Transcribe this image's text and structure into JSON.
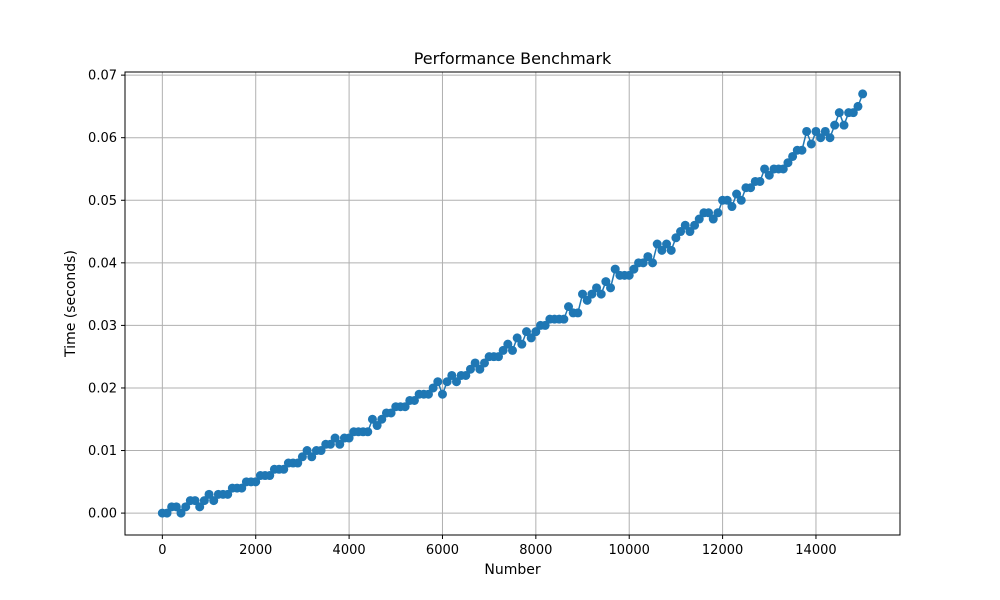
{
  "chart_data": {
    "type": "line",
    "title": "Performance Benchmark",
    "xlabel": "Number",
    "ylabel": "Time (seconds)",
    "xlim": [
      -800,
      15800
    ],
    "ylim": [
      -0.0035,
      0.0705
    ],
    "xticks": [
      0,
      2000,
      4000,
      6000,
      8000,
      10000,
      12000,
      14000
    ],
    "xtick_labels": [
      "0",
      "2000",
      "4000",
      "6000",
      "8000",
      "10000",
      "12000",
      "14000"
    ],
    "yticks": [
      0.0,
      0.01,
      0.02,
      0.03,
      0.04,
      0.05,
      0.06,
      0.07
    ],
    "ytick_labels": [
      "0.00",
      "0.01",
      "0.02",
      "0.03",
      "0.04",
      "0.05",
      "0.06",
      "0.07"
    ],
    "grid": true,
    "marker": "circle",
    "colors": {
      "series": "#1f77b4",
      "grid": "#b0b0b0",
      "axes": "#000000"
    },
    "series": [
      {
        "x": [
          0,
          100,
          200,
          300,
          400,
          500,
          600,
          700,
          800,
          900,
          1000,
          1100,
          1200,
          1300,
          1400,
          1500,
          1600,
          1700,
          1800,
          1900,
          2000,
          2100,
          2200,
          2300,
          2400,
          2500,
          2600,
          2700,
          2800,
          2900,
          3000,
          3100,
          3200,
          3300,
          3400,
          3500,
          3600,
          3700,
          3800,
          3900,
          4000,
          4100,
          4200,
          4300,
          4400,
          4500,
          4600,
          4700,
          4800,
          4900,
          5000,
          5100,
          5200,
          5300,
          5400,
          5500,
          5600,
          5700,
          5800,
          5900,
          6000,
          6100,
          6200,
          6300,
          6400,
          6500,
          6600,
          6700,
          6800,
          6900,
          7000,
          7100,
          7200,
          7300,
          7400,
          7500,
          7600,
          7700,
          7800,
          7900,
          8000,
          8100,
          8200,
          8300,
          8400,
          8500,
          8600,
          8700,
          8800,
          8900,
          9000,
          9100,
          9200,
          9300,
          9400,
          9500,
          9600,
          9700,
          9800,
          9900,
          10000,
          10100,
          10200,
          10300,
          10400,
          10500,
          10600,
          10700,
          10800,
          10900,
          11000,
          11100,
          11200,
          11300,
          11400,
          11500,
          11600,
          11700,
          11800,
          11900,
          12000,
          12100,
          12200,
          12300,
          12400,
          12500,
          12600,
          12700,
          12800,
          12900,
          13000,
          13100,
          13200,
          13300,
          13400,
          13500,
          13600,
          13700,
          13800,
          13900,
          14000,
          14100,
          14200,
          14300,
          14400,
          14500,
          14600,
          14700,
          14800,
          14900,
          15000
        ],
        "y": [
          0.0,
          0.0,
          0.001,
          0.001,
          0.0,
          0.001,
          0.002,
          0.002,
          0.001,
          0.002,
          0.003,
          0.002,
          0.003,
          0.003,
          0.003,
          0.004,
          0.004,
          0.004,
          0.005,
          0.005,
          0.005,
          0.006,
          0.006,
          0.006,
          0.007,
          0.007,
          0.007,
          0.008,
          0.008,
          0.008,
          0.009,
          0.01,
          0.009,
          0.01,
          0.01,
          0.011,
          0.011,
          0.012,
          0.011,
          0.012,
          0.012,
          0.013,
          0.013,
          0.013,
          0.013,
          0.015,
          0.014,
          0.015,
          0.016,
          0.016,
          0.017,
          0.017,
          0.017,
          0.018,
          0.018,
          0.019,
          0.019,
          0.019,
          0.02,
          0.021,
          0.019,
          0.021,
          0.022,
          0.021,
          0.022,
          0.022,
          0.023,
          0.024,
          0.023,
          0.024,
          0.025,
          0.025,
          0.025,
          0.026,
          0.027,
          0.026,
          0.028,
          0.027,
          0.029,
          0.028,
          0.029,
          0.03,
          0.03,
          0.031,
          0.031,
          0.031,
          0.031,
          0.033,
          0.032,
          0.032,
          0.035,
          0.034,
          0.035,
          0.036,
          0.035,
          0.037,
          0.036,
          0.039,
          0.038,
          0.038,
          0.038,
          0.039,
          0.04,
          0.04,
          0.041,
          0.04,
          0.043,
          0.042,
          0.043,
          0.042,
          0.044,
          0.045,
          0.046,
          0.045,
          0.046,
          0.047,
          0.048,
          0.048,
          0.047,
          0.048,
          0.05,
          0.05,
          0.049,
          0.051,
          0.05,
          0.052,
          0.052,
          0.053,
          0.053,
          0.055,
          0.054,
          0.055,
          0.055,
          0.055,
          0.056,
          0.057,
          0.058,
          0.058,
          0.061,
          0.059,
          0.061,
          0.06,
          0.061,
          0.06,
          0.062,
          0.064,
          0.062,
          0.064,
          0.064,
          0.065,
          0.067
        ]
      }
    ]
  }
}
